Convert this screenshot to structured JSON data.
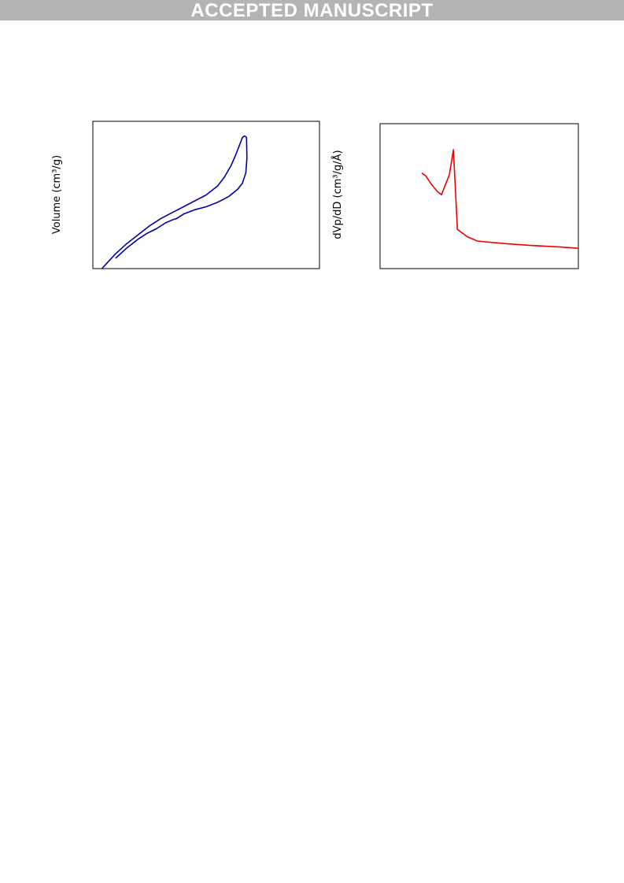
{
  "banner": {
    "text": "ACCEPTED MANUSCRIPT"
  },
  "colors": {
    "banner_bg": "#b4b4b4",
    "banner_text": "#ffffff",
    "isotherm": "#0000aa",
    "psd": "#ee0000"
  },
  "chart_data": [
    {
      "type": "line",
      "title": "",
      "xlabel": "",
      "ylabel": "Volume (cm³/g)",
      "xlim": [
        0,
        1
      ],
      "ylim": [
        0,
        1
      ],
      "grid": false,
      "series": [
        {
          "x": [
            0.04,
            0.07,
            0.1,
            0.15,
            0.2,
            0.25,
            0.3,
            0.35,
            0.4,
            0.45,
            0.5,
            0.55,
            0.58,
            0.61,
            0.63,
            0.65,
            0.66,
            0.668,
            0.672
          ],
          "y": [
            0.0,
            0.05,
            0.1,
            0.17,
            0.23,
            0.29,
            0.34,
            0.38,
            0.42,
            0.46,
            0.5,
            0.56,
            0.62,
            0.7,
            0.77,
            0.85,
            0.89,
            0.9,
            0.9
          ]
        },
        {
          "x": [
            0.672,
            0.678,
            0.68,
            0.675,
            0.66,
            0.64,
            0.6,
            0.55,
            0.5,
            0.45,
            0.4,
            0.37,
            0.35,
            0.32,
            0.28,
            0.24,
            0.2,
            0.15,
            0.1
          ],
          "y": [
            0.9,
            0.89,
            0.75,
            0.65,
            0.58,
            0.54,
            0.49,
            0.45,
            0.42,
            0.4,
            0.37,
            0.34,
            0.33,
            0.31,
            0.27,
            0.24,
            0.2,
            0.14,
            0.07
          ]
        }
      ]
    },
    {
      "type": "line",
      "title": "",
      "xlabel": "",
      "ylabel": "dVp/dD (cm³/g/Å)",
      "xlim": [
        0,
        1
      ],
      "ylim": [
        0,
        1
      ],
      "grid": false,
      "series": [
        {
          "x": [
            0.21,
            0.23,
            0.26,
            0.29,
            0.31,
            0.35,
            0.37,
            0.39,
            0.44,
            0.49,
            0.57,
            0.65,
            0.76,
            0.9,
            1.0
          ],
          "y": [
            0.66,
            0.64,
            0.58,
            0.53,
            0.51,
            0.65,
            0.82,
            0.27,
            0.22,
            0.19,
            0.18,
            0.17,
            0.16,
            0.15,
            0.14
          ]
        }
      ]
    }
  ]
}
